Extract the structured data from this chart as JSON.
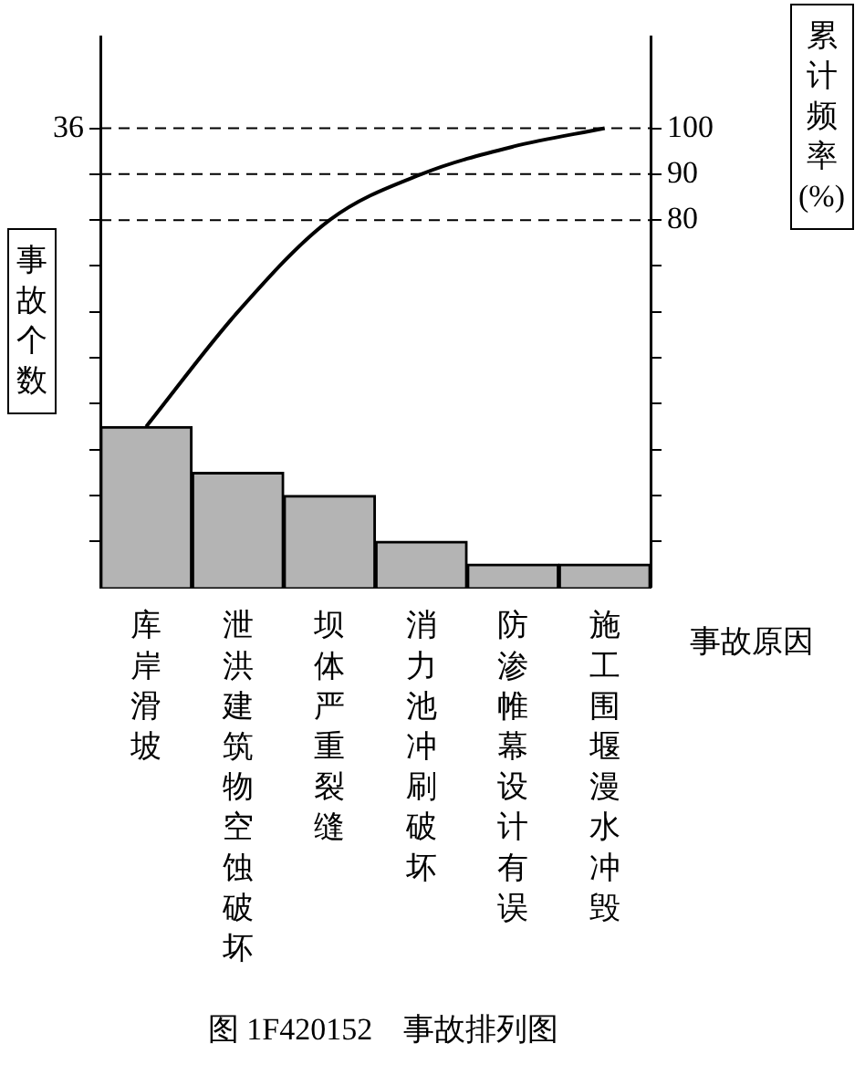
{
  "chart_data": {
    "type": "bar",
    "title": "图 1F420152　事故排列图",
    "xlabel": "事故原因",
    "ylabel": "事故个数",
    "y2label": "累计频率(%)",
    "categories": [
      "库岸滑坡",
      "泄洪建筑物空蚀破坏",
      "坝体严重裂缝",
      "消力池冲刷破坏",
      "防渗帷幕设计有误",
      "施工围堰漫水冲毁"
    ],
    "series": [
      {
        "color": "#b4b4b4",
        "values": [
          12.6,
          9,
          7.2,
          3.6,
          1.8,
          1.8
        ]
      },
      {
        "type": "line",
        "axis": "y2",
        "color": "#000000",
        "values": [
          35,
          60,
          80,
          90,
          96,
          100
        ]
      }
    ],
    "ylim": [
      0,
      43.2
    ],
    "yticks": [
      {
        "value": 3.6,
        "label": null
      },
      {
        "value": 7.2,
        "label": null
      },
      {
        "value": 10.8,
        "label": null
      },
      {
        "value": 14.4,
        "label": null
      },
      {
        "value": 18,
        "label": null
      },
      {
        "value": 21.6,
        "label": null
      },
      {
        "value": 25.2,
        "label": null
      },
      {
        "value": 28.8,
        "label": null
      },
      {
        "value": 32.4,
        "label": null
      },
      36
    ],
    "y2lim": [
      0,
      120
    ],
    "y2ticks": [
      {
        "value": 10,
        "label": null
      },
      {
        "value": 20,
        "label": null
      },
      {
        "value": 30,
        "label": null
      },
      {
        "value": 40,
        "label": null
      },
      {
        "value": 50,
        "label": null
      },
      {
        "value": 60,
        "label": null
      },
      {
        "value": 70,
        "label": null
      },
      80,
      90,
      100
    ],
    "ref_lines": [
      {
        "axis": "y2",
        "value": 80,
        "line_style": "dashed"
      },
      {
        "axis": "y2",
        "value": 90,
        "line_style": "dashed"
      },
      {
        "axis": "y2",
        "value": 100,
        "line_style": "dashed"
      }
    ],
    "grid": false,
    "legend": false,
    "marker": "none"
  }
}
